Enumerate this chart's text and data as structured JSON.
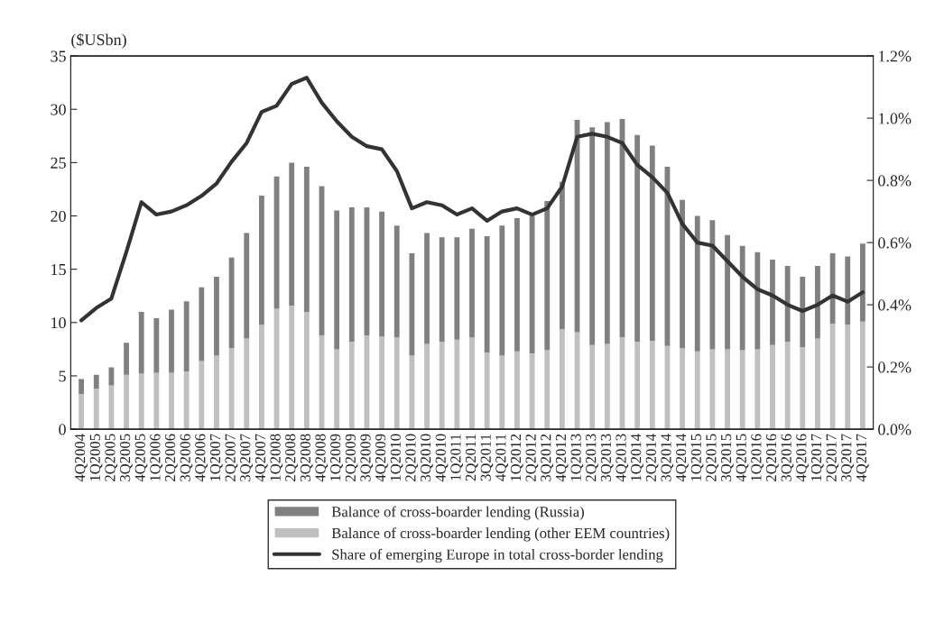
{
  "chart_data": {
    "type": "bar",
    "stacked": true,
    "ylabel": "($USbn)",
    "categories": [
      "4Q2004",
      "1Q2005",
      "2Q2005",
      "3Q2005",
      "4Q2005",
      "1Q2006",
      "2Q2006",
      "3Q2006",
      "4Q2006",
      "1Q2007",
      "2Q2007",
      "3Q2007",
      "4Q2007",
      "1Q2008",
      "2Q2008",
      "3Q2008",
      "4Q2008",
      "1Q2009",
      "2Q2009",
      "3Q2009",
      "4Q2009",
      "1Q2010",
      "2Q2010",
      "3Q2010",
      "4Q2010",
      "1Q2011",
      "2Q2011",
      "3Q2011",
      "4Q2011",
      "1Q2012",
      "2Q2012",
      "3Q2012",
      "4Q2012",
      "1Q2013",
      "2Q2013",
      "3Q2013",
      "4Q2013",
      "1Q2014",
      "2Q2014",
      "3Q2014",
      "4Q2014",
      "1Q2015",
      "2Q2015",
      "3Q2015",
      "4Q2015",
      "1Q2016",
      "2Q2016",
      "3Q2016",
      "4Q2016",
      "1Q2017",
      "2Q2017",
      "3Q2017",
      "4Q2017"
    ],
    "series": [
      {
        "name": "Balance of cross-boarder lending (other EEM countries)",
        "color": "#c0c0c0",
        "values": [
          3.3,
          3.8,
          4.1,
          5.1,
          5.2,
          5.3,
          5.3,
          5.4,
          6.4,
          6.9,
          7.6,
          8.5,
          9.8,
          11.3,
          11.6,
          11.0,
          8.8,
          7.5,
          8.2,
          8.8,
          8.7,
          8.6,
          6.9,
          8.0,
          8.2,
          8.4,
          8.6,
          7.2,
          6.9,
          7.3,
          7.1,
          7.4,
          9.4,
          9.1,
          7.9,
          8.0,
          8.6,
          8.2,
          8.3,
          7.8,
          7.6,
          7.3,
          7.5,
          7.5,
          7.4,
          7.5,
          7.9,
          8.2,
          7.7,
          8.5,
          9.9,
          9.8,
          10.1
        ]
      },
      {
        "name": "Balance of cross-boarder lending (Russia)",
        "color": "#808080",
        "values": [
          1.4,
          1.3,
          1.7,
          3.0,
          5.8,
          5.1,
          5.9,
          6.6,
          6.9,
          7.4,
          8.5,
          9.9,
          12.1,
          12.4,
          13.4,
          13.6,
          14.0,
          13.0,
          12.6,
          12.0,
          11.7,
          10.5,
          9.6,
          10.4,
          9.8,
          9.6,
          10.2,
          10.9,
          12.2,
          12.5,
          12.9,
          14.0,
          13.8,
          19.9,
          20.4,
          20.8,
          20.5,
          19.4,
          18.3,
          16.8,
          13.9,
          12.7,
          12.1,
          10.7,
          9.8,
          9.1,
          8.0,
          7.1,
          6.6,
          6.8,
          6.6,
          6.4,
          7.3
        ]
      },
      {
        "name": "Share of emerging Europe in total cross-border lending",
        "type": "line",
        "axis": "y2",
        "color": "#333333",
        "values": [
          0.35,
          0.39,
          0.42,
          0.57,
          0.73,
          0.69,
          0.7,
          0.72,
          0.75,
          0.79,
          0.86,
          0.92,
          1.02,
          1.04,
          1.11,
          1.13,
          1.05,
          0.99,
          0.94,
          0.91,
          0.9,
          0.83,
          0.71,
          0.73,
          0.72,
          0.69,
          0.71,
          0.67,
          0.7,
          0.71,
          0.69,
          0.71,
          0.78,
          0.94,
          0.95,
          0.94,
          0.92,
          0.85,
          0.81,
          0.76,
          0.66,
          0.6,
          0.59,
          0.54,
          0.49,
          0.45,
          0.43,
          0.4,
          0.38,
          0.4,
          0.43,
          0.41,
          0.44
        ]
      }
    ],
    "ylim": [
      0,
      35
    ],
    "yticks": [
      0,
      5,
      10,
      15,
      20,
      25,
      30,
      35
    ],
    "y2lim": [
      0,
      1.2
    ],
    "y2ticks": [
      {
        "value": 0,
        "label": "0.0%"
      },
      {
        "value": 0.2,
        "label": "0.2%"
      },
      {
        "value": 0.4,
        "label": "0.4%"
      },
      {
        "value": 0.6,
        "label": "0.6%"
      },
      {
        "value": 0.8,
        "label": "0.8%"
      },
      {
        "value": 1.0,
        "label": "1.0%"
      },
      {
        "value": 1.2,
        "label": "1.2%"
      }
    ],
    "legend": "bottom",
    "grid": false
  }
}
